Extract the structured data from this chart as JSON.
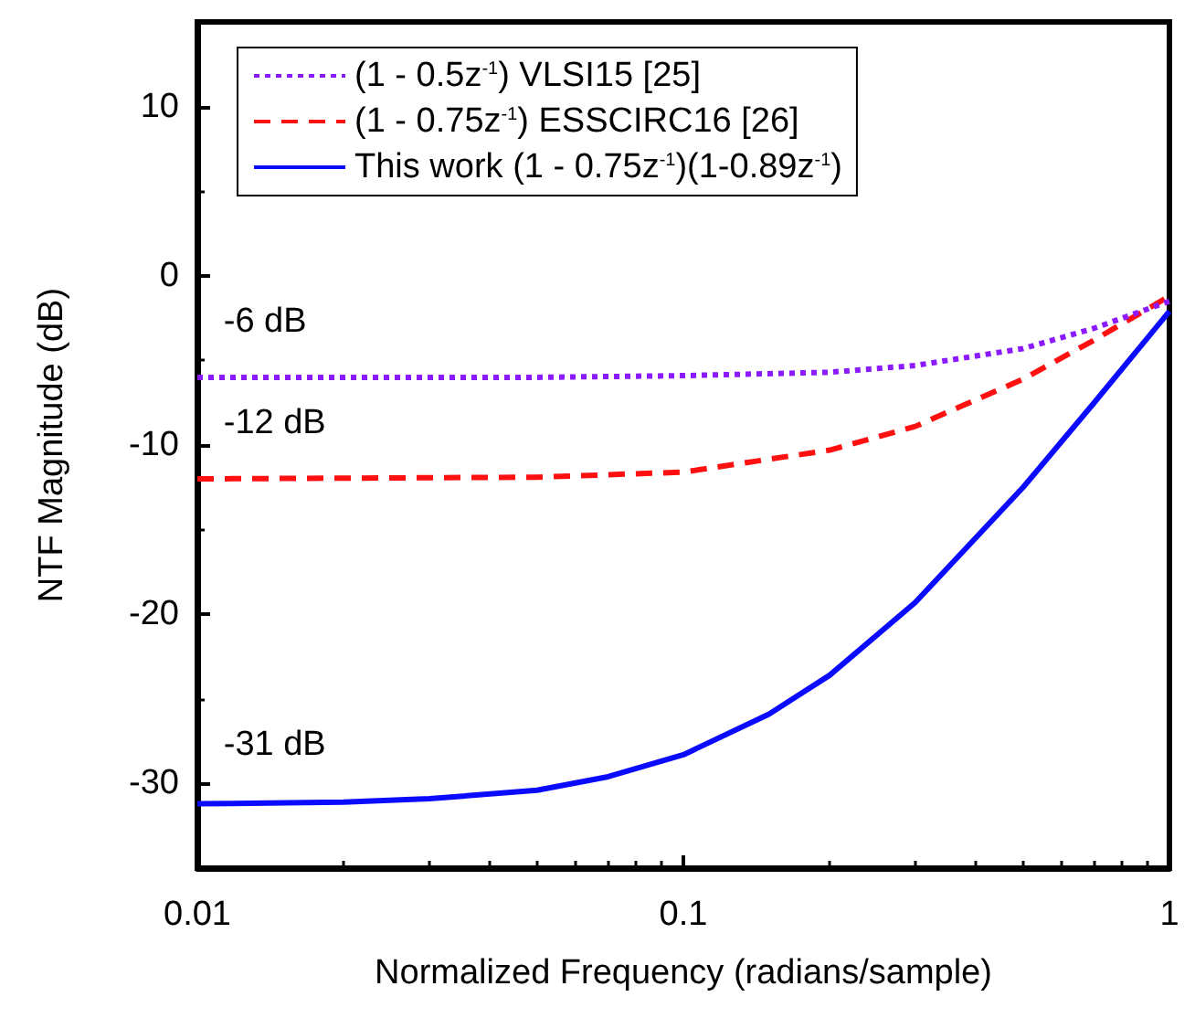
{
  "chart_data": {
    "type": "line",
    "xlabel": "Normalized Frequency (radians/sample)",
    "ylabel": "NTF Magnitude (dB)",
    "log": "x",
    "xlim": [
      0.01,
      1
    ],
    "xticks": [
      0.01,
      0.1,
      1
    ],
    "ylim": [
      -35,
      15
    ],
    "yticks": [
      -30,
      -20,
      -10,
      0,
      10
    ],
    "grid": false,
    "legend": "top left",
    "marker": "none",
    "series": [
      {
        "name": "(1 - 0.5z$^{-1}$) VLSI15 [25]",
        "color": "#8b1aff",
        "line_style": "dotted",
        "x": [
          0.01,
          0.05,
          0.1,
          0.2,
          0.3,
          0.5,
          0.7,
          1
        ],
        "values": [
          -6.0,
          -6.0,
          -5.9,
          -5.7,
          -5.3,
          -4.3,
          -3.1,
          -1.5
        ]
      },
      {
        "name": "(1 - 0.75z$^{-1}$) ESSCIRC16 [26]",
        "color": "#ff1010",
        "line_style": "dashed",
        "x": [
          0.01,
          0.05,
          0.1,
          0.2,
          0.3,
          0.5,
          0.7,
          1
        ],
        "values": [
          -12.0,
          -11.9,
          -11.6,
          -10.3,
          -8.9,
          -6.1,
          -3.8,
          -1.2
        ]
      },
      {
        "name": "This work (1 - 0.75z$^{-1}$)(1-0.89z$^{-1}$)",
        "color": "#0a0aff",
        "line_style": "solid",
        "x": [
          0.01,
          0.02,
          0.03,
          0.05,
          0.07,
          0.1,
          0.15,
          0.2,
          0.3,
          0.5,
          0.7,
          1
        ],
        "values": [
          -31.2,
          -31.1,
          -30.9,
          -30.4,
          -29.6,
          -28.3,
          -25.9,
          -23.6,
          -19.3,
          -12.5,
          -7.5,
          -2.1
        ]
      }
    ],
    "annotations": [
      {
        "text": "-6 dB",
        "y": -6
      },
      {
        "text": "-12 dB",
        "y": -12
      },
      {
        "text": "-31 dB",
        "y": -31
      }
    ]
  }
}
